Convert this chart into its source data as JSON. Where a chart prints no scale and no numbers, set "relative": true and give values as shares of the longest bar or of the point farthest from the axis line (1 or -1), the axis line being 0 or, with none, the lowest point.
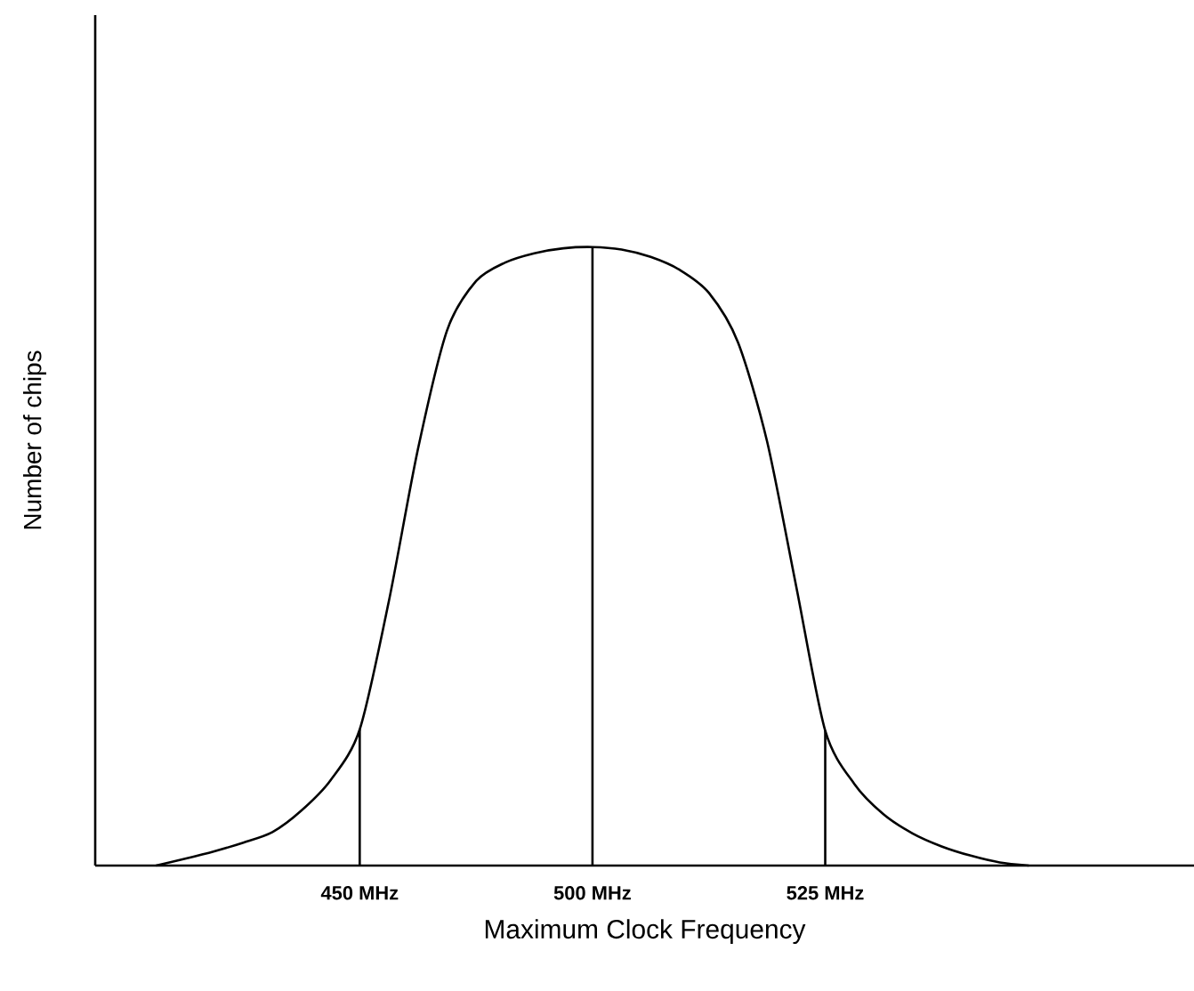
{
  "chart_data": {
    "type": "line",
    "xlabel": "Maximum  Clock  Frequency",
    "ylabel": "Number of chips",
    "relative": true,
    "categories": [
      null,
      null,
      null,
      null,
      null,
      null,
      null,
      "450 MHz",
      null,
      null,
      null,
      null,
      null,
      null,
      null,
      "500 MHz",
      null,
      null,
      null,
      null,
      null,
      null,
      null,
      "525 MHz",
      null,
      null,
      null,
      null,
      null,
      null,
      null
    ],
    "series": [
      {
        "color": "#000000",
        "values": [
          0,
          0.011,
          0.023,
          0.037,
          0.054,
          0.089,
          0.138,
          0.22,
          0.427,
          0.673,
          0.865,
          0.945,
          0.975,
          0.99,
          0.998,
          1,
          0.996,
          0.984,
          0.963,
          0.926,
          0.846,
          0.686,
          0.452,
          0.218,
          0.132,
          0.083,
          0.052,
          0.031,
          0.016,
          0.005,
          0
        ]
      },
      {
        "type": "bar",
        "color": "#000000",
        "values": [
          null,
          null,
          null,
          null,
          null,
          null,
          null,
          0.22,
          null,
          null,
          null,
          null,
          null,
          null,
          null,
          1,
          null,
          null,
          null,
          null,
          null,
          null,
          null,
          0.218,
          null,
          null,
          null,
          null,
          null,
          null,
          null
        ]
      }
    ],
    "grid": false,
    "marker": "none"
  }
}
